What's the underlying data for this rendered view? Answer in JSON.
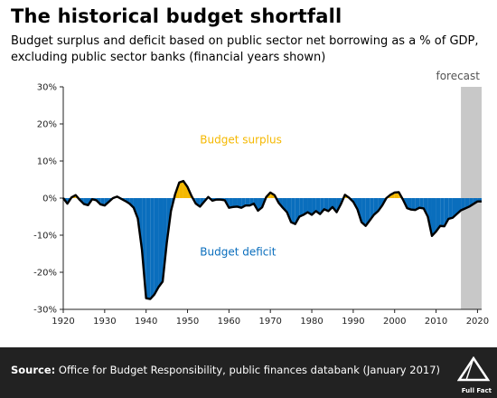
{
  "header": {
    "title": "The historical budget shortfall",
    "subtitle": "Budget surplus and deficit based on public sector net borrowing as a % of GDP, excluding public sector banks (financial years shown)"
  },
  "footer": {
    "source_label": "Source:",
    "source_text": "Office for Budget Responsibility, public finances databank (January 2017)",
    "logo_text": "Full Fact"
  },
  "colors": {
    "surplus": "#F5B800",
    "deficit": "#0A6EBD",
    "forecast_band": "#C8C8C8",
    "line": "#000000",
    "footer_bg": "#222222"
  },
  "chart_data": {
    "type": "area",
    "title": "The historical budget shortfall",
    "xlim": [
      1920,
      2021
    ],
    "ylim": [
      -30,
      30
    ],
    "x_ticks": [
      1920,
      1930,
      1940,
      1950,
      1960,
      1970,
      1980,
      1990,
      2000,
      2010,
      2020
    ],
    "y_ticks": [
      30,
      20,
      10,
      0,
      -10,
      -20,
      -30
    ],
    "y_tick_labels": [
      "30%",
      "20%",
      "10%",
      "0%",
      "-10%",
      "-20%",
      "-30%"
    ],
    "grid": false,
    "annotations": {
      "surplus": "Budget surplus",
      "deficit": "Budget deficit",
      "forecast": "forecast"
    },
    "forecast_start": 2016,
    "series": [
      {
        "x": [
          1920,
          1921,
          1922,
          1923,
          1924,
          1925,
          1926,
          1927,
          1928,
          1929,
          1930,
          1931,
          1932,
          1933,
          1934,
          1935,
          1936,
          1937,
          1938,
          1939,
          1940,
          1941,
          1942,
          1943,
          1944,
          1945,
          1946,
          1947,
          1948,
          1949,
          1950,
          1951,
          1952,
          1953,
          1954,
          1955,
          1956,
          1957,
          1958,
          1959,
          1960,
          1961,
          1962,
          1963,
          1964,
          1965,
          1966,
          1967,
          1968,
          1969,
          1970,
          1971,
          1972,
          1973,
          1974,
          1975,
          1976,
          1977,
          1978,
          1979,
          1980,
          1981,
          1982,
          1983,
          1984,
          1985,
          1986,
          1987,
          1988,
          1989,
          1990,
          1991,
          1992,
          1993,
          1994,
          1995,
          1996,
          1997,
          1998,
          1999,
          2000,
          2001,
          2002,
          2003,
          2004,
          2005,
          2006,
          2007,
          2008,
          2009,
          2010,
          2011,
          2012,
          2013,
          2014,
          2015,
          2016,
          2017,
          2018,
          2019,
          2020,
          2021
        ],
        "values": [
          0.0,
          -1.5,
          0.2,
          0.8,
          -0.5,
          -1.6,
          -1.9,
          -0.3,
          -0.6,
          -1.7,
          -2.0,
          -1.0,
          0.0,
          0.4,
          -0.2,
          -0.8,
          -1.5,
          -2.6,
          -5.5,
          -14.0,
          -27.0,
          -27.2,
          -26.0,
          -24.0,
          -22.5,
          -12.0,
          -3.5,
          1.0,
          4.2,
          4.6,
          3.0,
          0.5,
          -1.5,
          -2.3,
          -1.0,
          0.3,
          -0.7,
          -0.4,
          -0.4,
          -0.6,
          -2.6,
          -2.4,
          -2.3,
          -2.6,
          -2.0,
          -2.0,
          -1.5,
          -3.4,
          -2.5,
          0.3,
          1.5,
          0.8,
          -1.3,
          -2.6,
          -3.8,
          -6.5,
          -7.0,
          -5.0,
          -4.5,
          -3.8,
          -4.5,
          -3.5,
          -4.3,
          -3.0,
          -3.5,
          -2.4,
          -3.8,
          -1.7,
          0.9,
          0.1,
          -1.0,
          -3.0,
          -6.5,
          -7.5,
          -6.0,
          -4.5,
          -3.5,
          -2.0,
          0.0,
          0.9,
          1.5,
          1.6,
          -0.4,
          -2.7,
          -3.1,
          -3.2,
          -2.6,
          -2.8,
          -5.0,
          -10.2,
          -9.0,
          -7.5,
          -7.6,
          -5.6,
          -5.3,
          -4.3,
          -3.3,
          -2.8,
          -2.3,
          -1.6,
          -0.9,
          -0.9
        ]
      }
    ]
  }
}
